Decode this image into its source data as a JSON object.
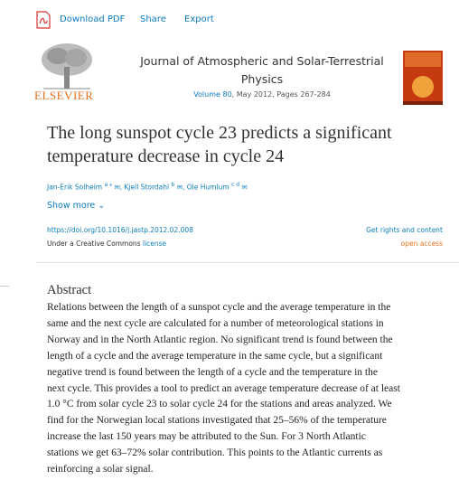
{
  "toolbar": {
    "items": [
      "Download PDF",
      "Share",
      "Export"
    ]
  },
  "journal": {
    "publisher": "ELSEVIER",
    "title_lines": [
      "Journal of Atmospheric and Solar-Terrestrial",
      "Physics"
    ],
    "volume": "Volume 80",
    "details": ", May 2012, Pages 267-284"
  },
  "article": {
    "title_lines": [
      "The long sunspot cycle 23 predicts a significant",
      "temperature decrease in cycle 24"
    ],
    "authors": [
      {
        "name": "Jan-Erik Solheim",
        "sup": "a ⁎"
      },
      {
        "name": "Kjell Stordahl",
        "sup": "b"
      },
      {
        "name": "Ole Humlum",
        "sup": "c d"
      }
    ],
    "show_more": "Show more",
    "doi": "https://doi.org/10.1016/j.jastp.2012.02.008",
    "rights": "Get rights and content",
    "license_prefix": "Under a Creative Commons",
    "license_link": "license",
    "access": "open access"
  },
  "abstract": {
    "heading": "Abstract",
    "lines": [
      "Relations between the length of a sunspot cycle and the average temperature in the",
      "same and the next cycle are calculated for a number of meteorological stations in",
      "Norway and in the North Atlantic region. No significant trend is found between the",
      "length of a cycle and the average temperature in the same cycle, but a significant",
      "negative trend is found between the length of a cycle and the temperature in the",
      "next cycle. This provides a tool to predict an average temperature decrease of at least",
      "1.0 °C from solar cycle 23 to solar cycle 24 for the stations and areas analyzed. We",
      "find for the Norwegian local stations investigated that 25–56% of the temperature",
      "increase the last 150 years may be attributed to the Sun. For 3 North Atlantic",
      "stations we get 63–72% solar contribution. This points to the Atlantic currents as",
      "reinforcing a solar signal."
    ]
  }
}
